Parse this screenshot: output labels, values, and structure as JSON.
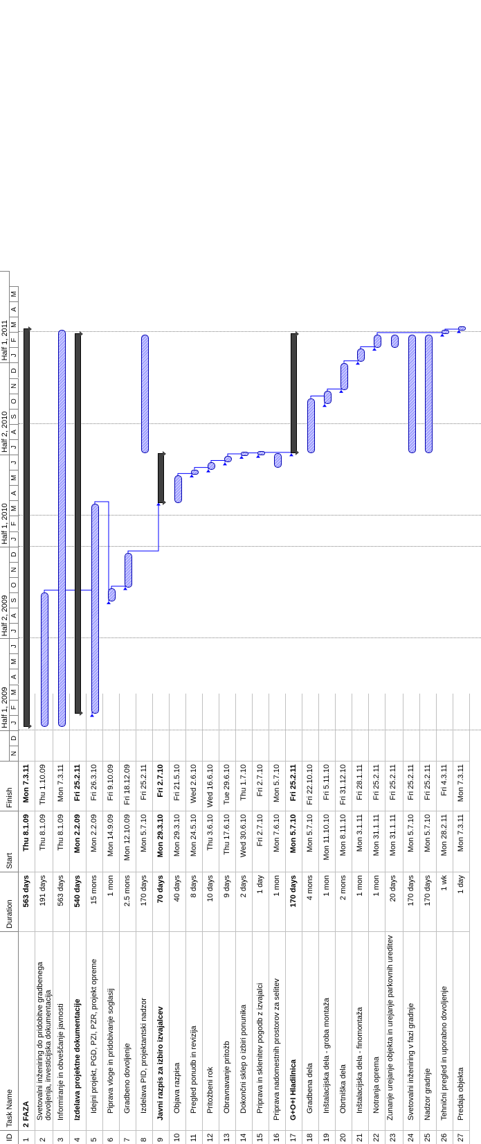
{
  "columns": {
    "id": "ID",
    "name": "Task Name",
    "duration": "Duration",
    "start": "Start",
    "finish": "Finish"
  },
  "timeline": {
    "halves": [
      "Half 1, 2009",
      "Half 2, 2009",
      "Half 1, 2010",
      "Half 2, 2010",
      "Half 1, 2011"
    ],
    "months": [
      "N",
      "D",
      "J",
      "F",
      "M",
      "A",
      "M",
      "J",
      "J",
      "A",
      "S",
      "O",
      "N",
      "D",
      "J",
      "F",
      "M",
      "A",
      "M",
      "J",
      "J",
      "A",
      "S",
      "O",
      "N",
      "D",
      "J",
      "F",
      "M",
      "A",
      "M"
    ]
  },
  "tasks": [
    {
      "id": "1",
      "name": "2 FAZA",
      "duration": "563 days",
      "start": "Thu 8.1.09",
      "finish": "Mon 7.3.11",
      "bold": true,
      "indent": 0
    },
    {
      "id": "2",
      "name": "Svetovalni inženiring do pridobitve gradbenega dovoljenja, investicijska dokumentacija",
      "duration": "191 days",
      "start": "Thu 8.1.09",
      "finish": "Thu 1.10.09",
      "indent": 1
    },
    {
      "id": "3",
      "name": "Informiranje in obveščanje javnosti",
      "duration": "563 days",
      "start": "Thu 8.1.09",
      "finish": "Mon 7.3.11",
      "indent": 1
    },
    {
      "id": "4",
      "name": "Izdelava projektne dokumentacije",
      "duration": "540 days",
      "start": "Mon 2.2.09",
      "finish": "Fri 25.2.11",
      "bold": true,
      "indent": 1
    },
    {
      "id": "5",
      "name": "Idejni projekt, PGD, PZI, PZR, projekt opreme",
      "duration": "15 mons",
      "start": "Mon 2.2.09",
      "finish": "Fri 26.3.10",
      "indent": 2
    },
    {
      "id": "6",
      "name": "Piprаva vloge in pridobivanje soglasij",
      "duration": "1 mon",
      "start": "Mon 14.9.09",
      "finish": "Fri 9.10.09",
      "indent": 2
    },
    {
      "id": "7",
      "name": "Gradbeno dovoljenje",
      "duration": "2.5 mons",
      "start": "Mon 12.10.09",
      "finish": "Fri 18.12.09",
      "indent": 2
    },
    {
      "id": "8",
      "name": "Izdelava PID, projektantski nadzor",
      "duration": "170 days",
      "start": "Mon 5.7.10",
      "finish": "Fri 25.2.11",
      "indent": 2
    },
    {
      "id": "9",
      "name": "Javni razpis za izbiro izvajalcev",
      "duration": "70 days",
      "start": "Mon 29.3.10",
      "finish": "Fri 2.7.10",
      "bold": true,
      "indent": 1
    },
    {
      "id": "10",
      "name": "Objava razpisa",
      "duration": "40 days",
      "start": "Mon 29.3.10",
      "finish": "Fri 21.5.10",
      "indent": 2
    },
    {
      "id": "11",
      "name": "Pregled ponudb in revizija",
      "duration": "8 days",
      "start": "Mon 24.5.10",
      "finish": "Wed 2.6.10",
      "indent": 2
    },
    {
      "id": "12",
      "name": "Pritožbeni rok",
      "duration": "10 days",
      "start": "Thu 3.6.10",
      "finish": "Wed 16.6.10",
      "indent": 2
    },
    {
      "id": "13",
      "name": "Obravnavanje pritožb",
      "duration": "9 days",
      "start": "Thu 17.6.10",
      "finish": "Tue 29.6.10",
      "indent": 2
    },
    {
      "id": "14",
      "name": "Dokončni sklep o izbiri ponunika",
      "duration": "2 days",
      "start": "Wed 30.6.10",
      "finish": "Thu 1.7.10",
      "indent": 2
    },
    {
      "id": "15",
      "name": "Priprava in sklenitev pogodb z izvajalci",
      "duration": "1 day",
      "start": "Fri 2.7.10",
      "finish": "Fri 2.7.10",
      "indent": 2
    },
    {
      "id": "16",
      "name": "Priprava nadomestnih prostorov za selitev",
      "duration": "1 mon",
      "start": "Mon 7.6.10",
      "finish": "Mon 5.7.10",
      "indent": 1
    },
    {
      "id": "17",
      "name": "G+O+I Hladilnica",
      "duration": "170 days",
      "start": "Mon 5.7.10",
      "finish": "Fri 25.2.11",
      "bold": true,
      "indent": 1
    },
    {
      "id": "18",
      "name": "Gradbena dela",
      "duration": "4 mons",
      "start": "Mon 5.7.10",
      "finish": "Fri 22.10.10",
      "indent": 2
    },
    {
      "id": "19",
      "name": "Inštalacijska dela - groba montaža",
      "duration": "1 mon",
      "start": "Mon 11.10.10",
      "finish": "Fri 5.11.10",
      "indent": 2
    },
    {
      "id": "20",
      "name": "Obrtniška dela",
      "duration": "2 mons",
      "start": "Mon 8.11.10",
      "finish": "Fri 31.12.10",
      "indent": 2
    },
    {
      "id": "21",
      "name": "Inštalacijska dela - finomontaža",
      "duration": "1 mon",
      "start": "Mon 3.1.11",
      "finish": "Fri 28.1.11",
      "indent": 2
    },
    {
      "id": "22",
      "name": "Notranja oprema",
      "duration": "1 mon",
      "start": "Mon 31.1.11",
      "finish": "Fri 25.2.11",
      "indent": 2
    },
    {
      "id": "23",
      "name": "Zunanje urejanje objekta in urejanje parkovnih ureditev",
      "duration": "20 days",
      "start": "Mon 31.1.11",
      "finish": "Fri 25.2.11",
      "indent": 1
    },
    {
      "id": "24",
      "name": "Svetovalni inženiring v fazi gradnje",
      "duration": "170 days",
      "start": "Mon 5.7.10",
      "finish": "Fri 25.2.11",
      "indent": 1
    },
    {
      "id": "25",
      "name": "Nadzor gradnje",
      "duration": "170 days",
      "start": "Mon 5.7.10",
      "finish": "Fri 25.2.11",
      "indent": 1
    },
    {
      "id": "26",
      "name": "Tehnični pregled in uporabno dovoljenje",
      "duration": "1 wk",
      "start": "Mon 28.2.11",
      "finish": "Fri 4.3.11",
      "indent": 1
    },
    {
      "id": "27",
      "name": "Predaja objekta",
      "duration": "1 day",
      "start": "Mon 7.3.11",
      "finish": "Mon 7.3.11",
      "indent": 1
    }
  ],
  "colors": {
    "task_bar": "#8c8cff",
    "task_border": "#0000b0",
    "summary_bar": "#404040",
    "link": "#0000ff"
  }
}
